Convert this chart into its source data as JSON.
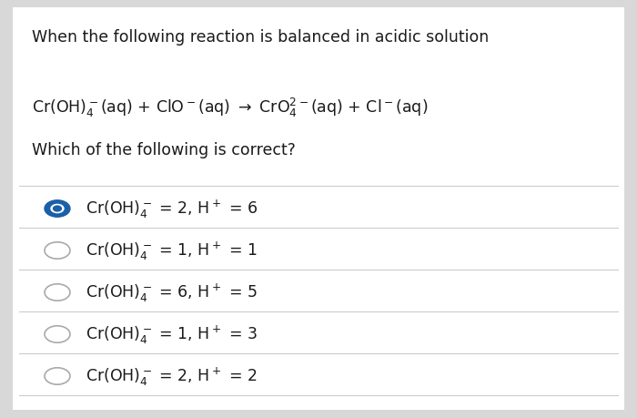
{
  "background_color": "#d8d8d8",
  "card_color": "#ffffff",
  "title": "When the following reaction is balanced in acidic solution",
  "question": "Which of the following is correct?",
  "options": [
    {
      "selected": true
    },
    {
      "selected": false
    },
    {
      "selected": false
    },
    {
      "selected": false
    },
    {
      "selected": false
    }
  ],
  "selected_color": "#1a5fa8",
  "unselected_color": "#aaaaaa",
  "text_color": "#1a1a1a",
  "divider_color": "#cccccc",
  "title_fontsize": 12.5,
  "reaction_fontsize": 12.5,
  "option_fontsize": 12.5
}
